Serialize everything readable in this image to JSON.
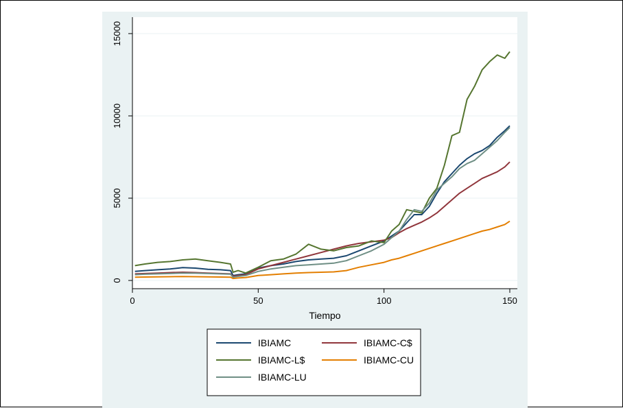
{
  "chart_data": {
    "type": "line",
    "title": "",
    "xlabel": "Tiempo",
    "ylabel": "",
    "xlim": [
      0,
      153
    ],
    "ylim": [
      -500,
      16000
    ],
    "xticks": [
      0,
      50,
      100,
      150
    ],
    "yticks": [
      0,
      5000,
      10000,
      15000
    ],
    "grid": true,
    "legend_position": "bottom",
    "colors": {
      "plot_background": "#ffffff",
      "figure_background": "#eaf2f3",
      "grid": "#eaf2f3"
    },
    "x": [
      1,
      5,
      10,
      15,
      20,
      25,
      30,
      35,
      39,
      40,
      42,
      45,
      50,
      55,
      60,
      65,
      70,
      75,
      80,
      85,
      90,
      95,
      100,
      103,
      106,
      109,
      112,
      115,
      118,
      121,
      124,
      127,
      130,
      133,
      136,
      139,
      142,
      145,
      148,
      150
    ],
    "series": [
      {
        "name": "IBIAMC",
        "color": "#1a476f",
        "values": [
          550,
          600,
          650,
          700,
          780,
          750,
          680,
          650,
          600,
          300,
          350,
          400,
          750,
          900,
          1000,
          1150,
          1250,
          1300,
          1350,
          1500,
          1800,
          2100,
          2400,
          2700,
          3000,
          3500,
          4000,
          4000,
          4500,
          5300,
          6000,
          6500,
          7000,
          7400,
          7700,
          7900,
          8200,
          8700,
          9100,
          9400
        ]
      },
      {
        "name": "IBIAMC-C$",
        "color": "#90353b",
        "values": [
          400,
          420,
          450,
          480,
          500,
          480,
          450,
          420,
          400,
          250,
          300,
          350,
          700,
          900,
          1100,
          1300,
          1500,
          1700,
          1900,
          2100,
          2250,
          2350,
          2450,
          2600,
          2900,
          3150,
          3350,
          3550,
          3800,
          4100,
          4500,
          4900,
          5300,
          5600,
          5900,
          6200,
          6400,
          6600,
          6900,
          7200
        ]
      },
      {
        "name": "IBIAMC-L$",
        "color": "#55752f",
        "values": [
          900,
          1000,
          1100,
          1150,
          1250,
          1300,
          1200,
          1100,
          1000,
          500,
          600,
          450,
          800,
          1200,
          1300,
          1600,
          2200,
          1900,
          1800,
          2000,
          2100,
          2400,
          2300,
          3000,
          3400,
          4300,
          4200,
          4100,
          5000,
          5600,
          7000,
          8800,
          9000,
          11000,
          11800,
          12800,
          13300,
          13700,
          13500,
          13900
        ]
      },
      {
        "name": "IBIAMC-CU",
        "color": "#e37e00",
        "values": [
          200,
          210,
          220,
          230,
          240,
          230,
          220,
          210,
          200,
          120,
          150,
          180,
          300,
          350,
          400,
          450,
          480,
          500,
          520,
          600,
          800,
          950,
          1100,
          1250,
          1350,
          1500,
          1650,
          1800,
          1950,
          2100,
          2250,
          2400,
          2550,
          2700,
          2850,
          3000,
          3100,
          3250,
          3400,
          3600
        ]
      },
      {
        "name": "IBIAMC-LU",
        "color": "#6e8e84",
        "values": [
          350,
          380,
          400,
          420,
          450,
          440,
          420,
          400,
          380,
          200,
          250,
          300,
          550,
          700,
          800,
          900,
          950,
          1000,
          1050,
          1200,
          1500,
          1800,
          2200,
          2600,
          3000,
          3700,
          4300,
          4200,
          4700,
          5500,
          5900,
          6300,
          6800,
          7100,
          7300,
          7700,
          8100,
          8500,
          9000,
          9300
        ]
      }
    ]
  }
}
